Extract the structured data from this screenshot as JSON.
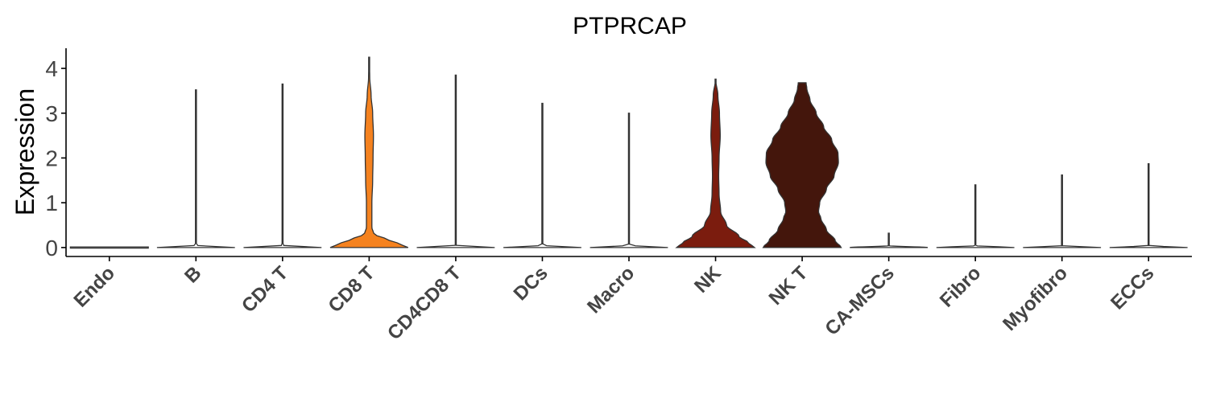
{
  "chart_data": {
    "type": "violin",
    "title": "PTPRCAP",
    "xlabel": "",
    "ylabel": "Expression",
    "ylim": [
      -0.2,
      4.45
    ],
    "yticks": [
      0,
      1,
      2,
      3,
      4
    ],
    "grid": false,
    "legend": "none",
    "categories": [
      "Endo",
      "B",
      "CD4 T",
      "CD8 T",
      "CD4CD8 T",
      "DCs",
      "Macro",
      "NK",
      "NK T",
      "CA-MSCs",
      "Fibro",
      "Myofibro",
      "ECCs"
    ],
    "series": [
      {
        "color": "#ffffff",
        "max": 0.0,
        "profile": [
          [
            0,
            1.0
          ]
        ]
      },
      {
        "color": "#ffffff",
        "max": 3.52,
        "profile": [
          [
            0,
            1.0
          ],
          [
            0.05,
            0.01
          ],
          [
            3.52,
            0.0
          ]
        ]
      },
      {
        "color": "#ffffff",
        "max": 3.65,
        "profile": [
          [
            0,
            1.0
          ],
          [
            0.05,
            0.01
          ],
          [
            3.65,
            0.0
          ]
        ]
      },
      {
        "color": "#F5821F",
        "max": 4.25,
        "profile": [
          [
            0,
            1.0
          ],
          [
            0.1,
            0.72
          ],
          [
            0.2,
            0.4
          ],
          [
            0.3,
            0.12
          ],
          [
            0.45,
            0.07
          ],
          [
            1.0,
            0.07
          ],
          [
            1.5,
            0.09
          ],
          [
            2.0,
            0.1
          ],
          [
            2.5,
            0.11
          ],
          [
            3.0,
            0.09
          ],
          [
            3.4,
            0.05
          ],
          [
            3.8,
            0.015
          ],
          [
            4.25,
            0.0
          ]
        ]
      },
      {
        "color": "#ffffff",
        "max": 3.85,
        "profile": [
          [
            0,
            1.0
          ],
          [
            0.05,
            0.01
          ],
          [
            3.85,
            0.0
          ]
        ]
      },
      {
        "color": "#ffffff",
        "max": 3.22,
        "profile": [
          [
            0,
            1.0
          ],
          [
            0.05,
            0.01
          ],
          [
            3.22,
            0.0
          ]
        ]
      },
      {
        "color": "#ffffff",
        "max": 3.0,
        "profile": [
          [
            0,
            1.0
          ],
          [
            0.05,
            0.01
          ],
          [
            3.0,
            0.0
          ]
        ]
      },
      {
        "color": "#7B1C0E",
        "max": 3.76,
        "profile": [
          [
            0,
            1.0
          ],
          [
            0.1,
            0.85
          ],
          [
            0.25,
            0.6
          ],
          [
            0.5,
            0.28
          ],
          [
            0.8,
            0.13
          ],
          [
            1.2,
            0.09
          ],
          [
            1.6,
            0.08
          ],
          [
            2.0,
            0.09
          ],
          [
            2.5,
            0.12
          ],
          [
            3.0,
            0.1
          ],
          [
            3.4,
            0.06
          ],
          [
            3.76,
            0.0
          ]
        ]
      },
      {
        "color": "#44160C",
        "max": 3.68,
        "profile": [
          [
            0,
            1.0
          ],
          [
            0.15,
            0.85
          ],
          [
            0.4,
            0.62
          ],
          [
            0.65,
            0.48
          ],
          [
            0.8,
            0.42
          ],
          [
            1.0,
            0.45
          ],
          [
            1.3,
            0.62
          ],
          [
            1.6,
            0.82
          ],
          [
            1.9,
            0.93
          ],
          [
            2.1,
            0.92
          ],
          [
            2.4,
            0.76
          ],
          [
            2.7,
            0.55
          ],
          [
            3.0,
            0.36
          ],
          [
            3.3,
            0.2
          ],
          [
            3.55,
            0.12
          ],
          [
            3.68,
            0.1
          ]
        ]
      },
      {
        "color": "#ffffff",
        "max": 0.32,
        "profile": [
          [
            0,
            1.0
          ],
          [
            0.04,
            0.01
          ],
          [
            0.32,
            0.0
          ]
        ]
      },
      {
        "color": "#ffffff",
        "max": 1.4,
        "profile": [
          [
            0,
            1.0
          ],
          [
            0.04,
            0.01
          ],
          [
            1.4,
            0.0
          ]
        ]
      },
      {
        "color": "#ffffff",
        "max": 1.62,
        "profile": [
          [
            0,
            1.0
          ],
          [
            0.04,
            0.01
          ],
          [
            1.62,
            0.0
          ]
        ]
      },
      {
        "color": "#ffffff",
        "max": 1.87,
        "profile": [
          [
            0,
            1.0
          ],
          [
            0.04,
            0.01
          ],
          [
            1.87,
            0.0
          ]
        ]
      }
    ]
  }
}
